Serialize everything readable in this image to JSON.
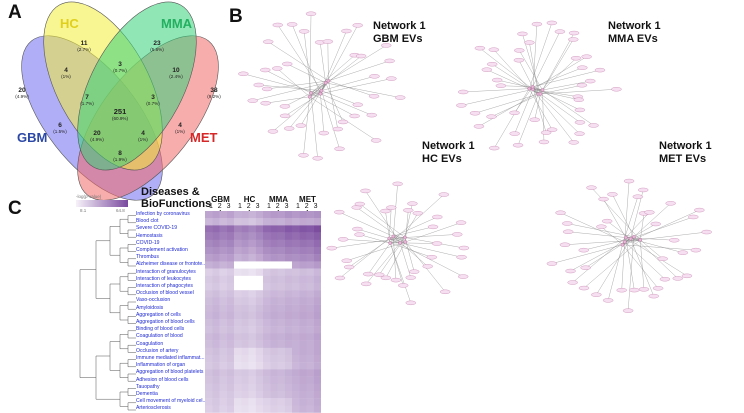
{
  "panels": {
    "a": "A",
    "b": "B",
    "c": "C"
  },
  "venn": {
    "sets": [
      {
        "name": "HC",
        "color": "#f3ec3a"
      },
      {
        "name": "MMA",
        "color": "#37d27a"
      },
      {
        "name": "GBM",
        "color": "#6f6cf0"
      },
      {
        "name": "MET",
        "color": "#f26a6a"
      }
    ],
    "regions": [
      {
        "count": "11",
        "pct": "(2.7%)"
      },
      {
        "count": "23",
        "pct": "(5.6%)"
      },
      {
        "count": "3",
        "pct": "(0.7%)"
      },
      {
        "count": "4",
        "pct": "(1%)"
      },
      {
        "count": "10",
        "pct": "(2.4%)"
      },
      {
        "count": "20",
        "pct": "(4.9%)"
      },
      {
        "count": "7",
        "pct": "(1.7%)"
      },
      {
        "count": "3",
        "pct": "(0.7%)"
      },
      {
        "count": "38",
        "pct": "(9.2%)"
      },
      {
        "count": "251",
        "pct": "(60.9%)"
      },
      {
        "count": "6",
        "pct": "(1.5%)"
      },
      {
        "count": "4",
        "pct": "(1%)"
      },
      {
        "count": "20",
        "pct": "(4.9%)"
      },
      {
        "count": "4",
        "pct": "(1%)"
      },
      {
        "count": "8",
        "pct": "(1.9%)"
      }
    ]
  },
  "networks": [
    {
      "title": "Network 1\nGBM EVs"
    },
    {
      "title": "Network 1\nMMA EVs"
    },
    {
      "title": "Network 1\nHC EVs"
    },
    {
      "title": "Network 1\nMET EVs"
    }
  ],
  "heatmap": {
    "title_line1": "Diseases &",
    "title_line2": "BioFunctions",
    "legend_title": "-log(p-value)",
    "legend_min": "8.1",
    "legend_max": "64.8",
    "columns": [
      "GBM",
      "HC",
      "MMA",
      "MET"
    ],
    "replicates": "1 2 3 4",
    "rows": [
      "Infection by coronavirus",
      "Blood clot",
      "Severe COVID-19",
      "Hemostasis",
      "COVID-19",
      "Complement activation",
      "Thrombus",
      "Alzheimer disease or frontote...",
      "Interaction of granulocytes",
      "Interaction of leukocytes",
      "Interaction of phagocytes",
      "Occlusion of blood vessel",
      "Vaso-occlusion",
      "Amyloidosis",
      "Aggregation of cells",
      "Aggregation of blood cells",
      "Binding of blood cells",
      "Coagulation of blood",
      "Coagulation",
      "Occlusion of artery",
      "Immune mediated inflammat...",
      "Inflammation of organ",
      "Aggregation of blood platelets",
      "Adhesion of blood cells",
      "Tauopathy",
      "Dementia",
      "Cell movement of myeloid cel...",
      "Arteriosclerosis"
    ],
    "values": [
      [
        34,
        36,
        33,
        35,
        30,
        31,
        29,
        32,
        36,
        38,
        37,
        40,
        38,
        40,
        39,
        41
      ],
      [
        28,
        30,
        27,
        29,
        24,
        25,
        23,
        26,
        30,
        31,
        30,
        33,
        31,
        33,
        32,
        34
      ],
      [
        52,
        54,
        50,
        53,
        46,
        48,
        45,
        49,
        55,
        57,
        56,
        60,
        58,
        61,
        60,
        64
      ],
      [
        48,
        50,
        47,
        49,
        42,
        44,
        41,
        45,
        50,
        52,
        51,
        55,
        53,
        56,
        55,
        58
      ],
      [
        44,
        46,
        43,
        45,
        38,
        40,
        37,
        41,
        46,
        48,
        47,
        50,
        49,
        51,
        50,
        54
      ],
      [
        40,
        42,
        39,
        41,
        34,
        36,
        33,
        37,
        42,
        44,
        43,
        46,
        45,
        47,
        46,
        50
      ],
      [
        36,
        38,
        35,
        37,
        30,
        32,
        29,
        33,
        38,
        40,
        39,
        42,
        41,
        43,
        42,
        46
      ],
      [
        30,
        32,
        29,
        31,
        8,
        9,
        8,
        9,
        8,
        9,
        8,
        9,
        34,
        36,
        35,
        38
      ],
      [
        20,
        22,
        19,
        21,
        14,
        15,
        13,
        16,
        22,
        24,
        23,
        25,
        24,
        26,
        25,
        28
      ],
      [
        22,
        24,
        21,
        23,
        9,
        9,
        8,
        9,
        24,
        26,
        25,
        27,
        26,
        28,
        27,
        30
      ],
      [
        21,
        23,
        20,
        22,
        9,
        9,
        8,
        9,
        23,
        25,
        24,
        26,
        25,
        27,
        26,
        29
      ],
      [
        24,
        26,
        23,
        25,
        20,
        21,
        19,
        22,
        26,
        28,
        27,
        29,
        28,
        30,
        29,
        32
      ],
      [
        26,
        28,
        25,
        27,
        22,
        23,
        21,
        24,
        28,
        30,
        29,
        31,
        30,
        32,
        31,
        34
      ],
      [
        27,
        29,
        26,
        28,
        24,
        25,
        23,
        26,
        29,
        31,
        30,
        32,
        31,
        33,
        32,
        35
      ],
      [
        28,
        30,
        27,
        29,
        25,
        26,
        24,
        27,
        30,
        32,
        31,
        33,
        32,
        34,
        33,
        36
      ],
      [
        26,
        28,
        25,
        27,
        23,
        24,
        22,
        25,
        28,
        30,
        29,
        31,
        30,
        32,
        31,
        34
      ],
      [
        25,
        27,
        24,
        26,
        22,
        23,
        21,
        24,
        27,
        29,
        28,
        30,
        29,
        31,
        30,
        33
      ],
      [
        27,
        29,
        26,
        28,
        24,
        25,
        23,
        26,
        29,
        31,
        30,
        32,
        31,
        33,
        32,
        35
      ],
      [
        26,
        28,
        25,
        27,
        23,
        24,
        22,
        25,
        28,
        30,
        29,
        31,
        30,
        32,
        31,
        34
      ],
      [
        24,
        26,
        23,
        25,
        16,
        17,
        15,
        18,
        22,
        24,
        23,
        25,
        30,
        32,
        31,
        34
      ],
      [
        23,
        25,
        22,
        24,
        15,
        16,
        14,
        17,
        21,
        23,
        22,
        24,
        29,
        31,
        30,
        33
      ],
      [
        22,
        24,
        21,
        23,
        14,
        15,
        13,
        16,
        20,
        22,
        21,
        23,
        28,
        30,
        29,
        32
      ],
      [
        25,
        27,
        24,
        26,
        22,
        23,
        21,
        24,
        27,
        29,
        28,
        30,
        32,
        34,
        33,
        36
      ],
      [
        24,
        26,
        23,
        25,
        21,
        22,
        20,
        23,
        26,
        28,
        27,
        29,
        31,
        33,
        32,
        35
      ],
      [
        23,
        25,
        22,
        24,
        20,
        21,
        19,
        22,
        25,
        27,
        26,
        28,
        30,
        32,
        31,
        34
      ],
      [
        22,
        24,
        21,
        23,
        19,
        20,
        18,
        21,
        24,
        26,
        25,
        27,
        29,
        31,
        30,
        33
      ],
      [
        21,
        23,
        20,
        22,
        15,
        16,
        14,
        17,
        19,
        21,
        20,
        22,
        28,
        30,
        29,
        32
      ],
      [
        20,
        22,
        19,
        21,
        14,
        15,
        13,
        16,
        18,
        20,
        19,
        21,
        27,
        29,
        28,
        31
      ]
    ]
  }
}
